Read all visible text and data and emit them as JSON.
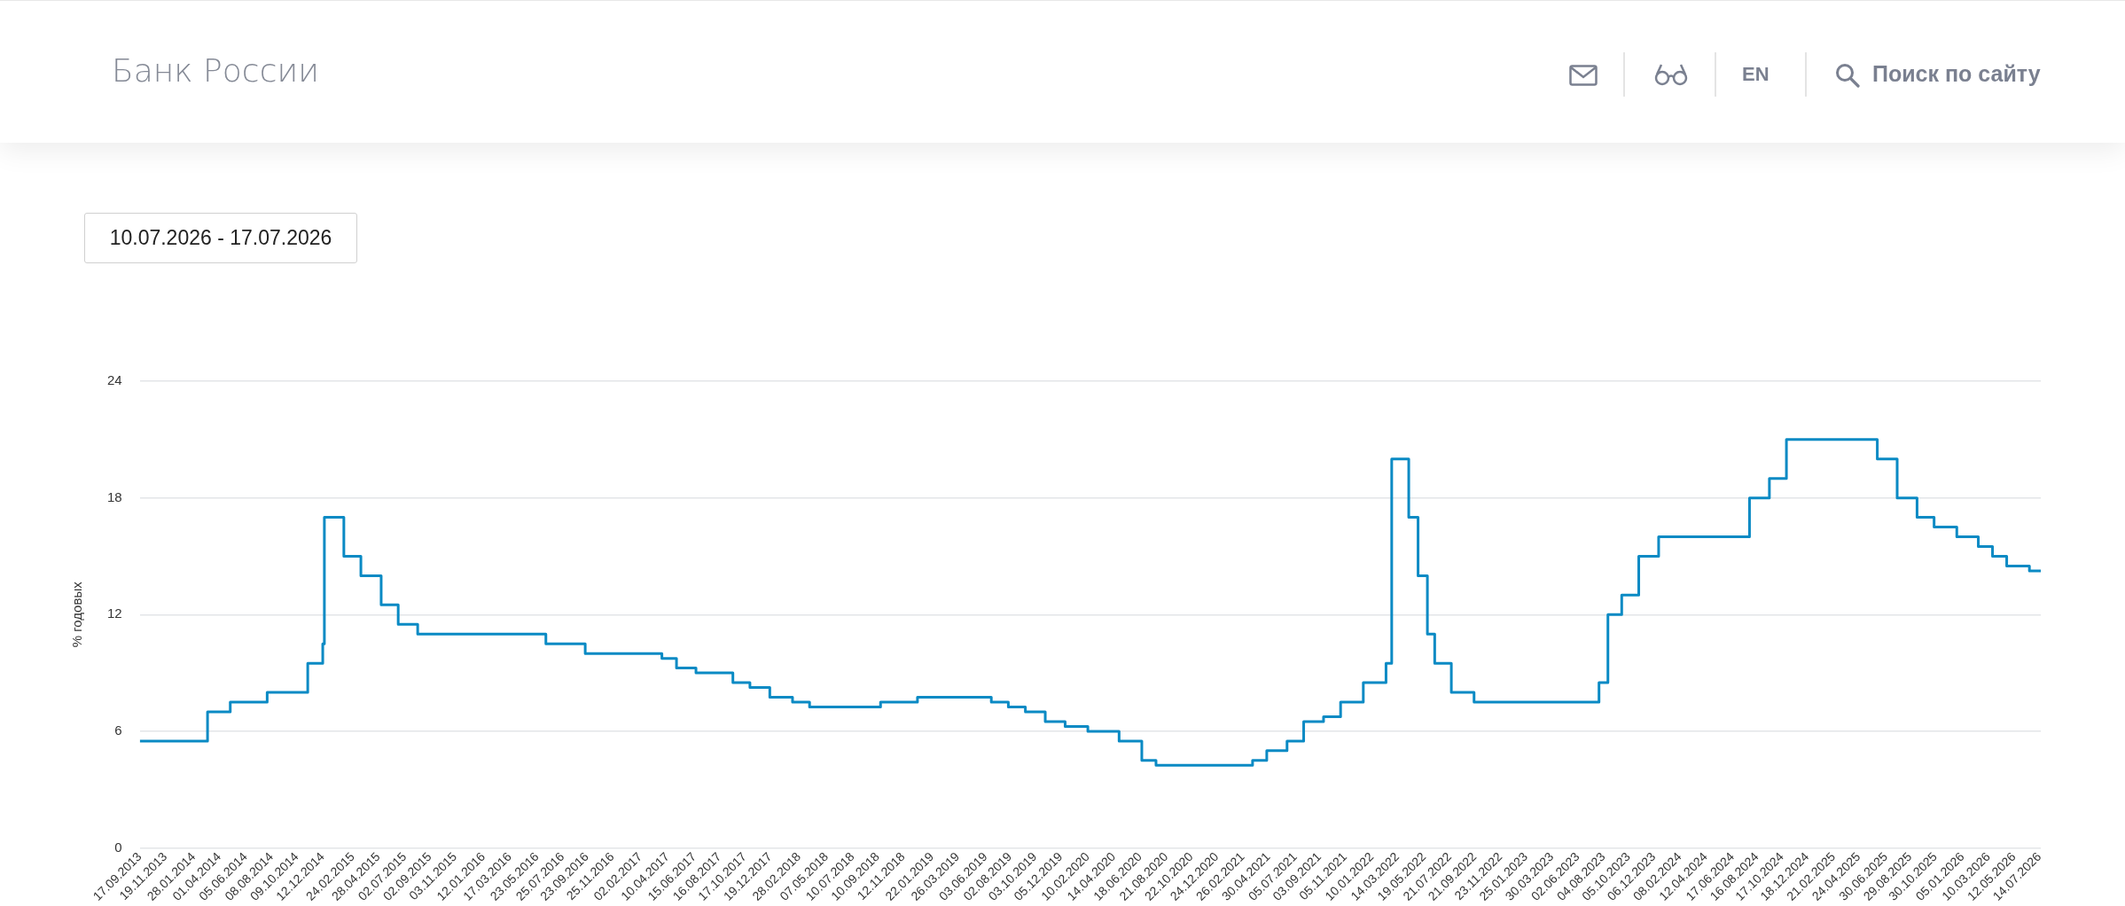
{
  "chart_data": {
    "type": "step",
    "ylabel": "% годовых",
    "annotations": [
      "Банк России",
      "EN",
      "Поиск по сайту",
      "10.07.2026 - 17.07.2026"
    ],
    "x": [
      "2013-09-17",
      "2014-03-03",
      "2014-04-28",
      "2014-07-28",
      "2014-11-05",
      "2014-12-12",
      "2014-12-16",
      "2015-02-02",
      "2015-03-16",
      "2015-05-05",
      "2015-06-16",
      "2015-08-03",
      "2016-06-14",
      "2016-09-19",
      "2017-03-27",
      "2017-05-02",
      "2017-06-19",
      "2017-09-18",
      "2017-10-30",
      "2017-12-18",
      "2018-02-12",
      "2018-03-26",
      "2018-09-17",
      "2018-12-17",
      "2019-06-17",
      "2019-07-29",
      "2019-09-09",
      "2019-10-28",
      "2019-12-16",
      "2020-02-10",
      "2020-04-27",
      "2020-06-22",
      "2020-07-27",
      "2021-03-22",
      "2021-04-26",
      "2021-06-15",
      "2021-07-26",
      "2021-09-13",
      "2021-10-25",
      "2021-12-20",
      "2022-02-14",
      "2022-02-28",
      "2022-04-11",
      "2022-05-04",
      "2022-05-27",
      "2022-06-14",
      "2022-07-25",
      "2022-09-19",
      "2023-07-24",
      "2023-08-15",
      "2023-09-18",
      "2023-10-30",
      "2023-12-18",
      "2024-07-29",
      "2024-09-16",
      "2024-10-28",
      "2025-06-09",
      "2025-07-28",
      "2025-09-15",
      "2025-10-27",
      "2025-12-22",
      "2026-02-13",
      "2026-03-20",
      "2026-04-24",
      "2026-06-19",
      "2026-07-17"
    ],
    "series": [
      {
        "color": "#0a8ac4",
        "values": [
          5.5,
          7,
          7.5,
          8,
          9.5,
          10.5,
          17,
          15,
          14,
          12.5,
          11.5,
          11,
          10.5,
          10,
          9.75,
          9.25,
          9,
          8.5,
          8.25,
          7.75,
          7.5,
          7.25,
          7.5,
          7.75,
          7.5,
          7.25,
          7,
          6.5,
          6.25,
          6,
          5.5,
          4.5,
          4.25,
          4.5,
          5,
          5.5,
          6.5,
          6.75,
          7.5,
          8.5,
          9.5,
          20,
          17,
          14,
          11,
          9.5,
          8,
          7.5,
          8.5,
          12,
          13,
          15,
          16,
          18,
          19,
          21,
          20,
          18,
          17,
          16.5,
          16,
          15.5,
          15,
          14.5,
          14.25,
          14.25
        ]
      }
    ],
    "xlim": [
      "2013-09-17",
      "2026-07-17"
    ],
    "ylim": [
      0,
      24
    ],
    "yticks": [
      0,
      6,
      12,
      18,
      24
    ],
    "xticks": [
      {
        "value": "2013-09-17",
        "label": "17.09.2013"
      },
      {
        "value": "2013-11-19",
        "label": "19.11.2013"
      },
      {
        "value": "2014-01-28",
        "label": "28.01.2014"
      },
      {
        "value": "2014-04-01",
        "label": "01.04.2014"
      },
      {
        "value": "2014-06-05",
        "label": "05.06.2014"
      },
      {
        "value": "2014-08-08",
        "label": "08.08.2014"
      },
      {
        "value": "2014-10-09",
        "label": "09.10.2014"
      },
      {
        "value": "2014-12-12",
        "label": "12.12.2014"
      },
      {
        "value": "2015-02-24",
        "label": "24.02.2015"
      },
      {
        "value": "2015-04-28",
        "label": "28.04.2015"
      },
      {
        "value": "2015-07-02",
        "label": "02.07.2015"
      },
      {
        "value": "2015-09-02",
        "label": "02.09.2015"
      },
      {
        "value": "2015-11-03",
        "label": "03.11.2015"
      },
      {
        "value": "2016-01-12",
        "label": "12.01.2016"
      },
      {
        "value": "2016-03-17",
        "label": "17.03.2016"
      },
      {
        "value": "2016-05-23",
        "label": "23.05.2016"
      },
      {
        "value": "2016-07-25",
        "label": "25.07.2016"
      },
      {
        "value": "2016-09-23",
        "label": "23.09.2016"
      },
      {
        "value": "2016-11-25",
        "label": "25.11.2016"
      },
      {
        "value": "2017-02-02",
        "label": "02.02.2017"
      },
      {
        "value": "2017-04-10",
        "label": "10.04.2017"
      },
      {
        "value": "2017-06-15",
        "label": "15.06.2017"
      },
      {
        "value": "2017-08-16",
        "label": "16.08.2017"
      },
      {
        "value": "2017-10-17",
        "label": "17.10.2017"
      },
      {
        "value": "2017-12-19",
        "label": "19.12.2017"
      },
      {
        "value": "2018-02-28",
        "label": "28.02.2018"
      },
      {
        "value": "2018-05-07",
        "label": "07.05.2018"
      },
      {
        "value": "2018-07-10",
        "label": "10.07.2018"
      },
      {
        "value": "2018-09-10",
        "label": "10.09.2018"
      },
      {
        "value": "2018-11-12",
        "label": "12.11.2018"
      },
      {
        "value": "2019-01-22",
        "label": "22.01.2019"
      },
      {
        "value": "2019-03-26",
        "label": "26.03.2019"
      },
      {
        "value": "2019-06-03",
        "label": "03.06.2019"
      },
      {
        "value": "2019-08-02",
        "label": "02.08.2019"
      },
      {
        "value": "2019-10-03",
        "label": "03.10.2019"
      },
      {
        "value": "2019-12-05",
        "label": "05.12.2019"
      },
      {
        "value": "2020-02-10",
        "label": "10.02.2020"
      },
      {
        "value": "2020-04-14",
        "label": "14.04.2020"
      },
      {
        "value": "2020-06-18",
        "label": "18.06.2020"
      },
      {
        "value": "2020-08-21",
        "label": "21.08.2020"
      },
      {
        "value": "2020-10-22",
        "label": "22.10.2020"
      },
      {
        "value": "2020-12-24",
        "label": "24.12.2020"
      },
      {
        "value": "2021-02-26",
        "label": "26.02.2021"
      },
      {
        "value": "2021-04-30",
        "label": "30.04.2021"
      },
      {
        "value": "2021-07-05",
        "label": "05.07.2021"
      },
      {
        "value": "2021-09-03",
        "label": "03.09.2021"
      },
      {
        "value": "2021-11-05",
        "label": "05.11.2021"
      },
      {
        "value": "2022-01-10",
        "label": "10.01.2022"
      },
      {
        "value": "2022-03-14",
        "label": "14.03.2022"
      },
      {
        "value": "2022-05-19",
        "label": "19.05.2022"
      },
      {
        "value": "2022-07-21",
        "label": "21.07.2022"
      },
      {
        "value": "2022-09-21",
        "label": "21.09.2022"
      },
      {
        "value": "2022-11-23",
        "label": "23.11.2022"
      },
      {
        "value": "2023-01-25",
        "label": "25.01.2023"
      },
      {
        "value": "2023-03-30",
        "label": "30.03.2023"
      },
      {
        "value": "2023-06-02",
        "label": "02.06.2023"
      },
      {
        "value": "2023-08-04",
        "label": "04.08.2023"
      },
      {
        "value": "2023-10-05",
        "label": "05.10.2023"
      },
      {
        "value": "2023-12-06",
        "label": "06.12.2023"
      },
      {
        "value": "2024-02-08",
        "label": "08.02.2024"
      },
      {
        "value": "2024-04-12",
        "label": "12.04.2024"
      },
      {
        "value": "2024-06-17",
        "label": "17.06.2024"
      },
      {
        "value": "2024-08-16",
        "label": "16.08.2024"
      },
      {
        "value": "2024-10-17",
        "label": "17.10.2024"
      },
      {
        "value": "2024-12-18",
        "label": "18.12.2024"
      },
      {
        "value": "2025-02-21",
        "label": "21.02.2025"
      },
      {
        "value": "2025-04-24",
        "label": "24.04.2025"
      },
      {
        "value": "2025-06-30",
        "label": "30.06.2025"
      },
      {
        "value": "2025-08-29",
        "label": "29.08.2025"
      },
      {
        "value": "2025-10-30",
        "label": "30.10.2025"
      },
      {
        "value": "2026-01-05",
        "label": "05.01.2026"
      },
      {
        "value": "2026-03-10",
        "label": "10.03.2026"
      },
      {
        "value": "2026-05-12",
        "label": "12.05.2026"
      },
      {
        "value": "2026-07-14",
        "label": "14.07.2026"
      }
    ],
    "grid": "y",
    "legend": false,
    "marker": "none",
    "line_style": "solid"
  }
}
